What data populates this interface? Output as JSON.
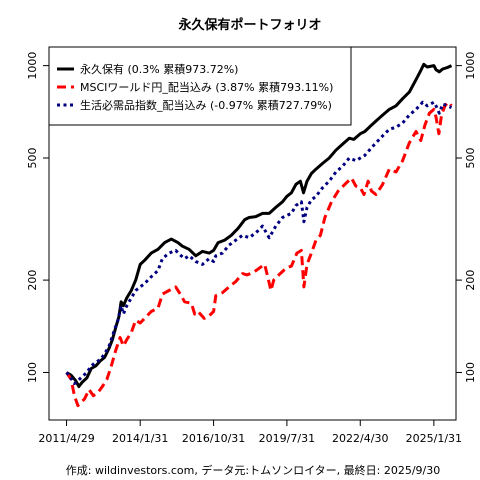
{
  "chart_data": {
    "type": "line",
    "title": "永久保有ポートフォリオ",
    "footer": "作成: wildinvestors.com, データ元:トムソンロイター, 最終日: 2025/9/30",
    "x_tick_labels": [
      "2011/4/29",
      "2014/1/31",
      "2016/10/31",
      "2019/7/31",
      "2022/4/30",
      "2025/1/31"
    ],
    "x_ticks": [
      "2011-04-29",
      "2014-01-31",
      "2016-10-31",
      "2019-07-31",
      "2022-04-30",
      "2025-01-31"
    ],
    "xlim": [
      "2010-09-01",
      "2025-11-30"
    ],
    "y_scale": "log",
    "ylim": [
      70,
      1150
    ],
    "y_ticks": [
      100,
      200,
      500,
      1000
    ],
    "y_tick_labels": [
      "100",
      "200",
      "500",
      "1000"
    ],
    "grid": false,
    "legend_position": "top-left",
    "series": [
      {
        "name": "永久保有",
        "legend_label": "永久保有 (0.3% 累積973.72%)",
        "color": "#000000",
        "dash": "solid",
        "points": [
          [
            "2011-04-29",
            100
          ],
          [
            "2011-07-01",
            98
          ],
          [
            "2011-09-01",
            94
          ],
          [
            "2011-10-15",
            90
          ],
          [
            "2011-12-01",
            93
          ],
          [
            "2012-02-01",
            96
          ],
          [
            "2012-04-01",
            103
          ],
          [
            "2012-06-01",
            105
          ],
          [
            "2012-08-01",
            109
          ],
          [
            "2012-10-01",
            112
          ],
          [
            "2012-12-01",
            120
          ],
          [
            "2013-01-15",
            128
          ],
          [
            "2013-03-01",
            140
          ],
          [
            "2013-04-15",
            152
          ],
          [
            "2013-05-15",
            170
          ],
          [
            "2013-06-15",
            165
          ],
          [
            "2013-08-01",
            175
          ],
          [
            "2013-10-01",
            185
          ],
          [
            "2013-12-01",
            200
          ],
          [
            "2014-01-31",
            225
          ],
          [
            "2014-04-01",
            232
          ],
          [
            "2014-07-01",
            245
          ],
          [
            "2014-10-01",
            252
          ],
          [
            "2015-01-01",
            265
          ],
          [
            "2015-04-01",
            272
          ],
          [
            "2015-07-01",
            265
          ],
          [
            "2015-09-01",
            258
          ],
          [
            "2015-12-01",
            252
          ],
          [
            "2016-03-01",
            240
          ],
          [
            "2016-06-01",
            248
          ],
          [
            "2016-09-01",
            245
          ],
          [
            "2016-10-31",
            250
          ],
          [
            "2017-01-01",
            265
          ],
          [
            "2017-04-01",
            270
          ],
          [
            "2017-07-01",
            280
          ],
          [
            "2017-10-01",
            295
          ],
          [
            "2018-01-01",
            315
          ],
          [
            "2018-03-01",
            320
          ],
          [
            "2018-06-01",
            322
          ],
          [
            "2018-09-01",
            330
          ],
          [
            "2018-12-01",
            330
          ],
          [
            "2019-03-01",
            345
          ],
          [
            "2019-06-01",
            360
          ],
          [
            "2019-07-31",
            375
          ],
          [
            "2019-10-01",
            385
          ],
          [
            "2019-12-01",
            410
          ],
          [
            "2020-02-01",
            420
          ],
          [
            "2020-03-15",
            385
          ],
          [
            "2020-05-01",
            420
          ],
          [
            "2020-07-01",
            445
          ],
          [
            "2020-09-01",
            460
          ],
          [
            "2020-12-01",
            480
          ],
          [
            "2021-03-01",
            500
          ],
          [
            "2021-06-01",
            530
          ],
          [
            "2021-09-01",
            555
          ],
          [
            "2021-12-01",
            580
          ],
          [
            "2022-02-01",
            575
          ],
          [
            "2022-04-30",
            600
          ],
          [
            "2022-07-01",
            610
          ],
          [
            "2022-10-01",
            640
          ],
          [
            "2022-12-01",
            660
          ],
          [
            "2023-03-01",
            690
          ],
          [
            "2023-06-01",
            720
          ],
          [
            "2023-09-01",
            740
          ],
          [
            "2023-12-01",
            780
          ],
          [
            "2024-03-01",
            820
          ],
          [
            "2024-06-01",
            900
          ],
          [
            "2024-08-01",
            960
          ],
          [
            "2024-09-15",
            1010
          ],
          [
            "2024-11-01",
            990
          ],
          [
            "2025-01-31",
            1000
          ],
          [
            "2025-03-01",
            970
          ],
          [
            "2025-04-15",
            955
          ],
          [
            "2025-06-01",
            975
          ],
          [
            "2025-08-01",
            985
          ],
          [
            "2025-09-30",
            1000
          ]
        ]
      },
      {
        "name": "MSCIワールド円_配当込み",
        "legend_label": "MSCIワールド円_配当込み (3.87% 累積793.11%)",
        "color": "#ff0000",
        "dash": "dashed",
        "points": [
          [
            "2011-04-29",
            100
          ],
          [
            "2011-07-01",
            95
          ],
          [
            "2011-08-15",
            84
          ],
          [
            "2011-10-01",
            78
          ],
          [
            "2011-11-15",
            80
          ],
          [
            "2012-01-01",
            82
          ],
          [
            "2012-03-01",
            88
          ],
          [
            "2012-05-01",
            84
          ],
          [
            "2012-07-01",
            86
          ],
          [
            "2012-09-01",
            90
          ],
          [
            "2012-11-01",
            95
          ],
          [
            "2013-01-01",
            105
          ],
          [
            "2013-03-01",
            118
          ],
          [
            "2013-05-01",
            130
          ],
          [
            "2013-06-15",
            122
          ],
          [
            "2013-08-01",
            128
          ],
          [
            "2013-10-01",
            135
          ],
          [
            "2013-12-01",
            148
          ],
          [
            "2014-01-31",
            145
          ],
          [
            "2014-04-01",
            150
          ],
          [
            "2014-07-01",
            158
          ],
          [
            "2014-10-01",
            162
          ],
          [
            "2014-12-01",
            180
          ],
          [
            "2015-03-01",
            185
          ],
          [
            "2015-06-01",
            190
          ],
          [
            "2015-08-15",
            178
          ],
          [
            "2015-10-01",
            170
          ],
          [
            "2016-01-01",
            168
          ],
          [
            "2016-02-15",
            155
          ],
          [
            "2016-04-01",
            158
          ],
          [
            "2016-06-25",
            150
          ],
          [
            "2016-09-01",
            153
          ],
          [
            "2016-10-31",
            158
          ],
          [
            "2016-12-01",
            178
          ],
          [
            "2017-03-01",
            182
          ],
          [
            "2017-06-01",
            190
          ],
          [
            "2017-09-01",
            198
          ],
          [
            "2017-12-01",
            210
          ],
          [
            "2018-02-01",
            208
          ],
          [
            "2018-05-01",
            212
          ],
          [
            "2018-08-01",
            220
          ],
          [
            "2018-10-01",
            225
          ],
          [
            "2018-12-25",
            185
          ],
          [
            "2019-02-01",
            200
          ],
          [
            "2019-05-01",
            210
          ],
          [
            "2019-07-31",
            220
          ],
          [
            "2019-10-01",
            222
          ],
          [
            "2019-12-15",
            245
          ],
          [
            "2020-02-15",
            250
          ],
          [
            "2020-03-20",
            190
          ],
          [
            "2020-05-01",
            225
          ],
          [
            "2020-07-01",
            245
          ],
          [
            "2020-09-01",
            270
          ],
          [
            "2020-11-01",
            280
          ],
          [
            "2021-01-01",
            320
          ],
          [
            "2021-04-01",
            360
          ],
          [
            "2021-07-01",
            390
          ],
          [
            "2021-10-01",
            410
          ],
          [
            "2021-12-31",
            430
          ],
          [
            "2022-03-01",
            405
          ],
          [
            "2022-04-30",
            400
          ],
          [
            "2022-06-20",
            380
          ],
          [
            "2022-08-15",
            420
          ],
          [
            "2022-10-01",
            390
          ],
          [
            "2022-12-01",
            380
          ],
          [
            "2023-03-01",
            410
          ],
          [
            "2023-06-01",
            460
          ],
          [
            "2023-09-01",
            450
          ],
          [
            "2023-12-01",
            490
          ],
          [
            "2024-03-01",
            560
          ],
          [
            "2024-06-01",
            610
          ],
          [
            "2024-08-05",
            570
          ],
          [
            "2024-10-01",
            640
          ],
          [
            "2024-12-01",
            700
          ],
          [
            "2025-01-31",
            720
          ],
          [
            "2025-03-01",
            680
          ],
          [
            "2025-04-10",
            600
          ],
          [
            "2025-05-15",
            690
          ],
          [
            "2025-07-01",
            740
          ],
          [
            "2025-08-15",
            760
          ],
          [
            "2025-09-30",
            740
          ]
        ]
      },
      {
        "name": "生活必需品指数_配当込み",
        "legend_label": "生活必需品指数_配当込み (-0.97% 累積727.79%)",
        "color": "#000080",
        "dash": "dotted",
        "points": [
          [
            "2011-04-29",
            100
          ],
          [
            "2011-06-01",
            98
          ],
          [
            "2011-08-15",
            92
          ],
          [
            "2011-10-01",
            94
          ],
          [
            "2011-12-01",
            97
          ],
          [
            "2012-02-01",
            100
          ],
          [
            "2012-04-01",
            105
          ],
          [
            "2012-06-01",
            108
          ],
          [
            "2012-08-01",
            110
          ],
          [
            "2012-10-01",
            115
          ],
          [
            "2012-12-01",
            122
          ],
          [
            "2013-02-01",
            135
          ],
          [
            "2013-04-01",
            148
          ],
          [
            "2013-05-15",
            165
          ],
          [
            "2013-06-15",
            155
          ],
          [
            "2013-08-01",
            165
          ],
          [
            "2013-10-01",
            175
          ],
          [
            "2013-12-01",
            185
          ],
          [
            "2014-01-31",
            190
          ],
          [
            "2014-04-01",
            195
          ],
          [
            "2014-07-01",
            205
          ],
          [
            "2014-10-01",
            215
          ],
          [
            "2014-12-01",
            235
          ],
          [
            "2015-03-01",
            245
          ],
          [
            "2015-06-01",
            250
          ],
          [
            "2015-08-15",
            240
          ],
          [
            "2015-10-01",
            235
          ],
          [
            "2015-12-01",
            240
          ],
          [
            "2016-03-01",
            230
          ],
          [
            "2016-06-01",
            225
          ],
          [
            "2016-09-01",
            235
          ],
          [
            "2016-10-31",
            230
          ],
          [
            "2016-12-01",
            240
          ],
          [
            "2017-03-01",
            245
          ],
          [
            "2017-06-01",
            260
          ],
          [
            "2017-09-01",
            270
          ],
          [
            "2017-12-01",
            280
          ],
          [
            "2018-03-01",
            275
          ],
          [
            "2018-06-01",
            285
          ],
          [
            "2018-09-01",
            300
          ],
          [
            "2018-12-01",
            275
          ],
          [
            "2019-03-01",
            300
          ],
          [
            "2019-06-01",
            320
          ],
          [
            "2019-07-31",
            325
          ],
          [
            "2019-10-01",
            330
          ],
          [
            "2019-12-01",
            350
          ],
          [
            "2020-02-15",
            360
          ],
          [
            "2020-03-20",
            310
          ],
          [
            "2020-05-01",
            345
          ],
          [
            "2020-07-01",
            365
          ],
          [
            "2020-09-01",
            375
          ],
          [
            "2020-12-01",
            400
          ],
          [
            "2021-03-01",
            420
          ],
          [
            "2021-06-01",
            450
          ],
          [
            "2021-09-01",
            470
          ],
          [
            "2021-12-01",
            500
          ],
          [
            "2022-03-01",
            490
          ],
          [
            "2022-04-30",
            500
          ],
          [
            "2022-07-01",
            510
          ],
          [
            "2022-10-01",
            540
          ],
          [
            "2022-12-01",
            560
          ],
          [
            "2023-03-01",
            590
          ],
          [
            "2023-06-01",
            620
          ],
          [
            "2023-09-01",
            630
          ],
          [
            "2023-12-01",
            650
          ],
          [
            "2024-03-01",
            690
          ],
          [
            "2024-06-01",
            720
          ],
          [
            "2024-09-01",
            760
          ],
          [
            "2024-11-01",
            740
          ],
          [
            "2025-01-31",
            760
          ],
          [
            "2025-03-01",
            740
          ],
          [
            "2025-04-15",
            700
          ],
          [
            "2025-06-01",
            750
          ],
          [
            "2025-08-01",
            740
          ],
          [
            "2025-09-30",
            730
          ]
        ]
      }
    ]
  }
}
